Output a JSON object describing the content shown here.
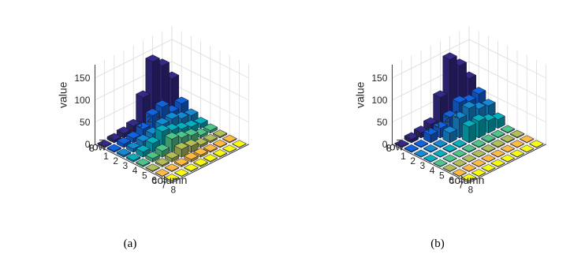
{
  "chart_data": [
    {
      "type": "bar3",
      "caption": "(a)",
      "xlabel": "column",
      "ylabel": "row",
      "zlabel": "value",
      "x_ticks": [
        "1",
        "2",
        "3",
        "4",
        "5",
        "6",
        "7",
        "8"
      ],
      "y_ticks": [
        "1",
        "2",
        "3",
        "4",
        "5",
        "6",
        "7",
        "8"
      ],
      "z_ticks": [
        "0",
        "50",
        "100",
        "150"
      ],
      "zlim": [
        0,
        180
      ],
      "grid": true,
      "colormap": "parula",
      "values": [
        [
          80,
          34,
          18,
          10,
          6,
          3,
          2,
          1
        ],
        [
          120,
          26,
          22,
          14,
          6,
          4,
          2,
          1
        ],
        [
          140,
          48,
          32,
          20,
          16,
          6,
          3,
          2
        ],
        [
          70,
          40,
          30,
          28,
          22,
          14,
          5,
          2
        ],
        [
          16,
          20,
          20,
          36,
          30,
          18,
          6,
          3
        ],
        [
          10,
          10,
          14,
          20,
          14,
          8,
          4,
          2
        ],
        [
          6,
          8,
          8,
          12,
          8,
          4,
          2,
          1
        ],
        [
          2,
          3,
          4,
          4,
          3,
          2,
          1,
          1
        ]
      ]
    },
    {
      "type": "bar3",
      "caption": "(b)",
      "xlabel": "column",
      "ylabel": "row",
      "zlabel": "value",
      "x_ticks": [
        "1",
        "2",
        "3",
        "4",
        "5",
        "6",
        "7",
        "8"
      ],
      "y_ticks": [
        "1",
        "2",
        "3",
        "4",
        "5",
        "6",
        "7",
        "8"
      ],
      "z_ticks": [
        "0",
        "50",
        "100",
        "150"
      ],
      "zlim": [
        0,
        180
      ],
      "grid": true,
      "colormap": "parula",
      "values": [
        [
          80,
          56,
          40,
          20,
          2,
          2,
          1,
          1
        ],
        [
          120,
          50,
          44,
          28,
          2,
          2,
          1,
          1
        ],
        [
          145,
          58,
          56,
          38,
          3,
          2,
          1,
          1
        ],
        [
          70,
          36,
          44,
          36,
          2,
          2,
          1,
          1
        ],
        [
          20,
          22,
          22,
          2,
          2,
          1,
          1,
          1
        ],
        [
          12,
          18,
          2,
          2,
          1,
          1,
          1,
          1
        ],
        [
          8,
          2,
          2,
          1,
          1,
          1,
          1,
          1
        ],
        [
          2,
          2,
          1,
          1,
          1,
          1,
          1,
          1
        ]
      ]
    }
  ]
}
